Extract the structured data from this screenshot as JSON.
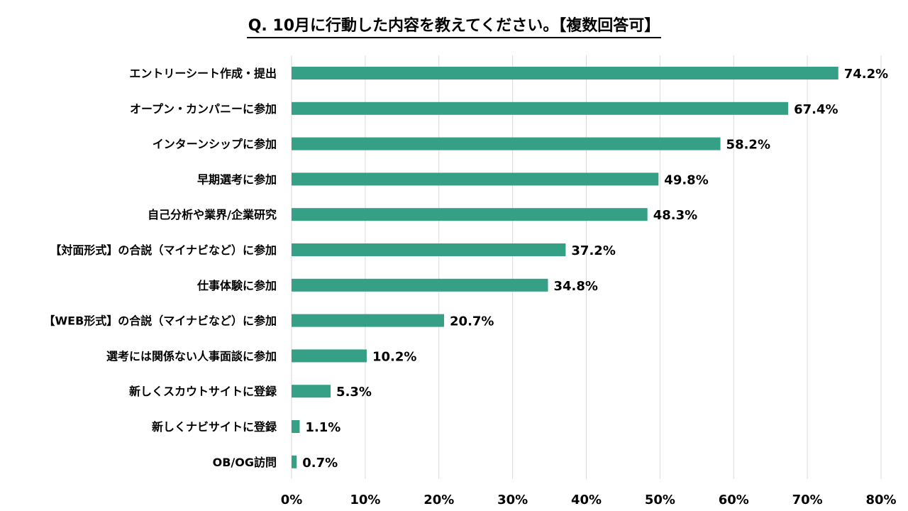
{
  "chart_data": {
    "type": "bar",
    "orientation": "horizontal",
    "title": "Q. 10月に行動した内容を教えてください。【複数回答可】",
    "categories": [
      "エントリーシート作成・提出",
      "オープン・カンパニーに参加",
      "インターンシップに参加",
      "早期選考に参加",
      "自己分析や業界/企業研究",
      "【対面形式】の合説（マイナビなど）に参加",
      "仕事体験に参加",
      "【WEB形式】の合説（マイナビなど）に参加",
      "選考には関係ない人事面談に参加",
      "新しくスカウトサイトに登録",
      "新しくナビサイトに登録",
      "OB/OG訪問"
    ],
    "values": [
      74.2,
      67.4,
      58.2,
      49.8,
      48.3,
      37.2,
      34.8,
      20.7,
      10.2,
      5.3,
      1.1,
      0.7
    ],
    "value_labels": [
      "74.2%",
      "67.4%",
      "58.2%",
      "49.8%",
      "48.3%",
      "37.2%",
      "34.8%",
      "20.7%",
      "10.2%",
      "5.3%",
      "1.1%",
      "0.7%"
    ],
    "xlim": [
      0,
      80
    ],
    "xticks": [
      "0%",
      "10%",
      "20%",
      "30%",
      "40%",
      "50%",
      "60%",
      "70%",
      "80%"
    ],
    "xlabel": "",
    "ylabel": "",
    "grid": true,
    "bar_color": "#36A086",
    "grid_color": "#D9D9D9"
  }
}
